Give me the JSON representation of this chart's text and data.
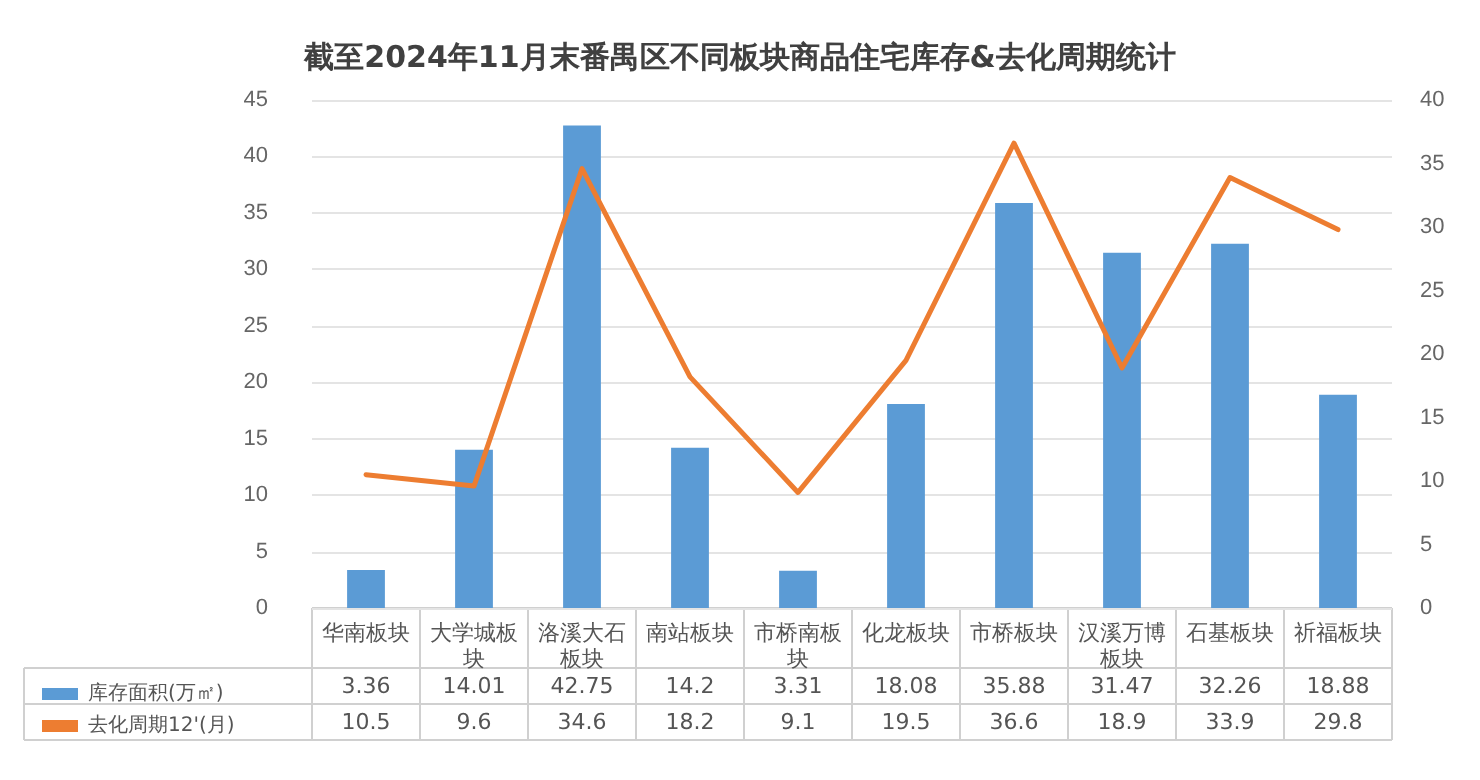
{
  "chart_data": {
    "type": "bar",
    "title": "截至2024年11月末番禺区不同板块商品住宅库存&去化周期统计",
    "categories": [
      "华南板块",
      "大学城板块",
      "洛溪大石板块",
      "南站板块",
      "市桥南板块",
      "化龙板块",
      "市桥板块",
      "汉溪万博板块",
      "石基板块",
      "祈福板块"
    ],
    "series": [
      {
        "name": "库存面积(万㎡)",
        "color": "#5b9bd5",
        "values": [
          3.36,
          14.01,
          42.75,
          14.2,
          3.31,
          18.08,
          35.88,
          31.47,
          32.26,
          18.88
        ]
      },
      {
        "name": "去化周期12'(月)",
        "type": "line",
        "axis": "y2",
        "color": "#ed7d31",
        "values": [
          10.5,
          9.6,
          34.6,
          18.2,
          9.1,
          19.5,
          36.6,
          18.9,
          33.9,
          29.8
        ]
      }
    ],
    "ylim": [
      0,
      45
    ],
    "yticks": [
      0,
      5,
      10,
      15,
      20,
      25,
      30,
      35,
      40,
      45
    ],
    "y2lim": [
      0,
      40
    ],
    "y2ticks": [
      0,
      5,
      10,
      15,
      20,
      25,
      30,
      35,
      40
    ],
    "grid": "y",
    "legend": "bottom left",
    "data_labels": true,
    "marker": "none",
    "line_style": "solid"
  }
}
